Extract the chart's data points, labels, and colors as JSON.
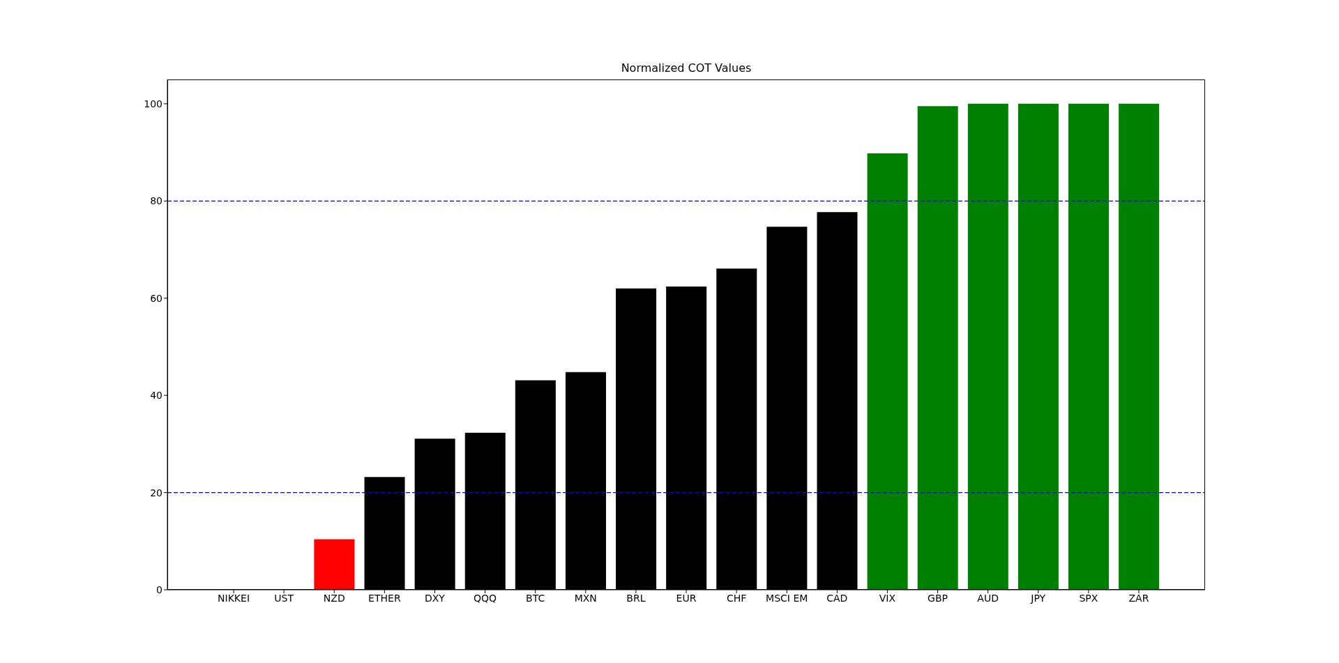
{
  "chart_data": {
    "type": "bar",
    "title": "Normalized COT Values",
    "categories": [
      "NIKKEI",
      "UST",
      "NZD",
      "ETHER",
      "DXY",
      "QQQ",
      "BTC",
      "MXN",
      "BRL",
      "EUR",
      "CHF",
      "MSCI EM",
      "CAD",
      "VIX",
      "GBP",
      "AUD",
      "JPY",
      "SPX",
      "ZAR"
    ],
    "values": [
      0,
      0,
      10.4,
      23.2,
      31.1,
      32.3,
      43.1,
      44.8,
      62.0,
      62.4,
      66.1,
      74.7,
      77.7,
      89.8,
      99.5,
      100,
      100,
      100,
      100
    ],
    "colors": [
      "#ff0000",
      "#ff0000",
      "#ff0000",
      "#000000",
      "#000000",
      "#000000",
      "#000000",
      "#000000",
      "#000000",
      "#000000",
      "#000000",
      "#000000",
      "#000000",
      "#008000",
      "#008000",
      "#008000",
      "#008000",
      "#008000",
      "#008000"
    ],
    "ylim": [
      0,
      105
    ],
    "yticks": [
      0,
      20,
      40,
      60,
      80,
      100
    ],
    "grid": false,
    "legend": false,
    "ref_lines": [
      {
        "axis": "y",
        "value": 20,
        "color": "#0000ff",
        "line_style": "dashed"
      },
      {
        "axis": "y",
        "value": 80,
        "color": "#0000ff",
        "line_style": "dashed"
      }
    ]
  }
}
